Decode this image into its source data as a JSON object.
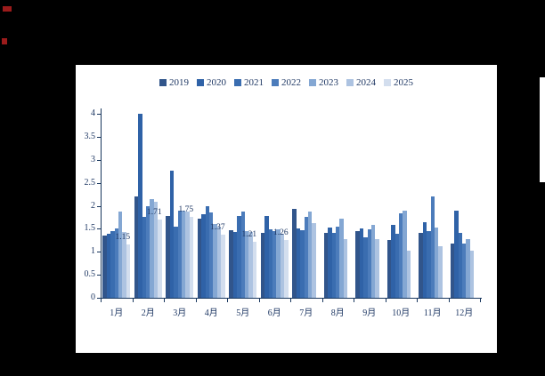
{
  "page": {
    "background_color": "#000000",
    "panel_color": "#ffffff",
    "text_color": "#1F3864"
  },
  "artifacts": {
    "top_left_mark_color": "#9B1B1B",
    "left_edge_mark_color": "#9B1B1B",
    "right_edge_sliver_color": "#ffffff"
  },
  "chart_data": {
    "type": "bar",
    "title": "",
    "xlabel": "",
    "ylabel": "",
    "categories": [
      "1月",
      "2月",
      "3月",
      "4月",
      "5月",
      "6月",
      "7月",
      "8月",
      "9月",
      "10月",
      "11月",
      "12月"
    ],
    "series": [
      {
        "name": "2019",
        "color": "#31558B",
        "values": [
          1.35,
          2.2,
          1.78,
          1.72,
          1.47,
          1.42,
          1.93,
          1.42,
          1.45,
          1.26,
          1.42,
          1.18
        ]
      },
      {
        "name": "2020",
        "color": "#2F62A7",
        "values": [
          1.4,
          4.0,
          2.77,
          1.82,
          1.43,
          1.78,
          1.51,
          1.52,
          1.5,
          1.58,
          1.65,
          1.9
        ]
      },
      {
        "name": "2021",
        "color": "#3A6DB0",
        "values": [
          1.45,
          1.75,
          1.55,
          2.0,
          1.78,
          1.48,
          1.46,
          1.42,
          1.32,
          1.39,
          1.45,
          1.42
        ]
      },
      {
        "name": "2022",
        "color": "#4C7CBB",
        "values": [
          1.5,
          2.0,
          1.9,
          1.85,
          1.88,
          1.45,
          1.75,
          1.55,
          1.48,
          1.84,
          2.2,
          1.18
        ]
      },
      {
        "name": "2023",
        "color": "#84A7D3",
        "values": [
          1.87,
          2.15,
          1.9,
          1.6,
          1.45,
          1.48,
          1.87,
          1.72,
          1.58,
          1.9,
          1.52,
          1.28
        ]
      },
      {
        "name": "2024",
        "color": "#ADC3E1",
        "values": [
          1.43,
          2.08,
          1.88,
          1.55,
          1.43,
          1.4,
          1.63,
          1.28,
          1.28,
          1.02,
          1.12,
          1.02
        ]
      },
      {
        "name": "2025",
        "color": "#D3DEEE",
        "values": [
          1.15,
          1.71,
          1.75,
          1.37,
          1.21,
          1.26,
          null,
          null,
          null,
          null,
          null,
          null
        ],
        "data_labels": [
          "1.15",
          "1.71",
          "1.75",
          "1.37",
          "1.21",
          "1.26"
        ]
      }
    ],
    "ylim": [
      0,
      4
    ],
    "ytick_step": 0.5,
    "yticks": [
      "0",
      "0.5",
      "1",
      "1.5",
      "2",
      "2.5",
      "3",
      "3.5",
      "4"
    ],
    "grid": false,
    "legend_position": "top"
  }
}
